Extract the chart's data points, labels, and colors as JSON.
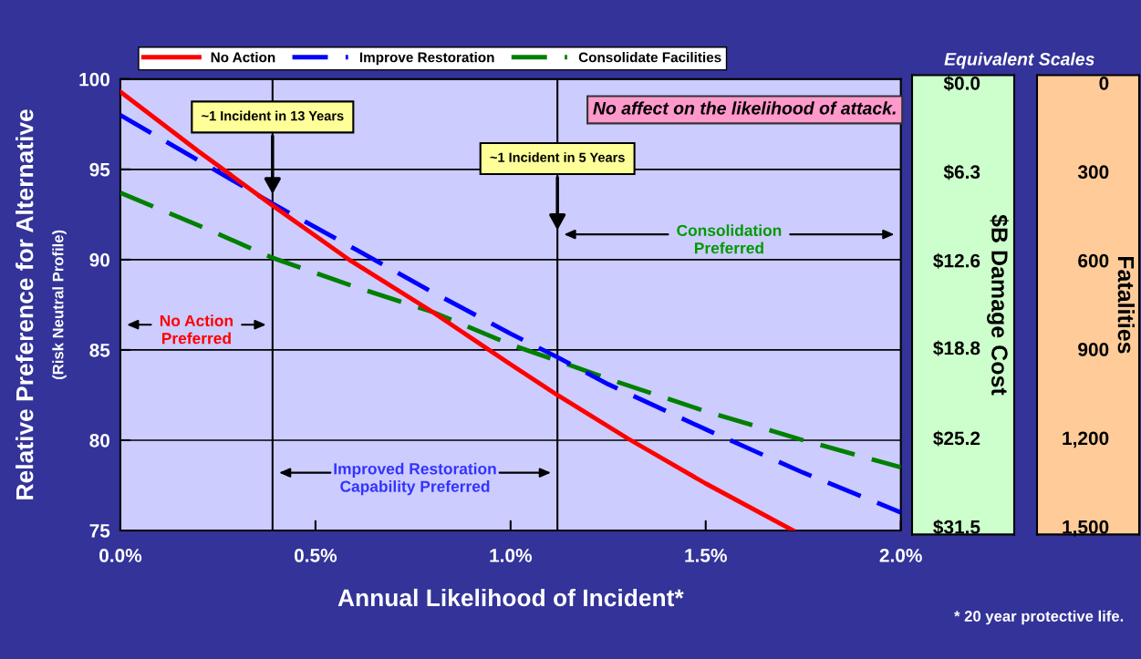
{
  "chart_data": {
    "type": "line",
    "xlabel": "Annual Likelihood of Incident*",
    "ylabel": "Relative Preference for Alternative",
    "y2label": "$B Damage Cost",
    "y3label": "Fatalities",
    "x": [
      0,
      0.2,
      0.39,
      0.6,
      0.8,
      1.0,
      1.12,
      1.25,
      1.5,
      1.75,
      2.0
    ],
    "series": [
      {
        "name": "No Action",
        "color": "#ff0000",
        "line_style": "solid",
        "x": [
          0,
          0.2,
          0.39,
          0.586,
          0.8,
          1.0,
          1.12,
          1.3,
          1.5,
          1.724
        ],
        "values": [
          99.3,
          96.0,
          93.0,
          90.0,
          87.1,
          84.2,
          82.5,
          80.1,
          77.6,
          75.0
        ]
      },
      {
        "name": "Improve Restoration",
        "color": "#0000ff",
        "line_style": "dashed",
        "values": [
          98.0,
          95.5,
          93.1,
          90.6,
          88.2,
          85.9,
          84.6,
          83.1,
          80.6,
          78.2,
          76.0
        ]
      },
      {
        "name": "Consolidate Facilities",
        "color": "#008000",
        "line_style": "dashed",
        "values": [
          93.7,
          91.9,
          90.1,
          88.5,
          87.1,
          85.3,
          84.4,
          83.4,
          81.6,
          80.0,
          78.5
        ]
      }
    ],
    "xlim": [
      0,
      2.0
    ],
    "xticks": [
      {
        "value": 0,
        "label": "0.0%"
      },
      {
        "value": 0.5,
        "label": "0.5%"
      },
      {
        "value": 1.0,
        "label": "1.0%"
      },
      {
        "value": 1.5,
        "label": "1.5%"
      },
      {
        "value": 2.0,
        "label": "2.0%"
      }
    ],
    "ylim": [
      75,
      100
    ],
    "yticks": [
      75,
      80,
      85,
      90,
      95,
      100
    ],
    "y2lim": [
      31.5,
      0
    ],
    "y2ticks": [
      {
        "value": 0,
        "label": "$0.0"
      },
      {
        "value": 6.3,
        "label": "$6.3"
      },
      {
        "value": 12.6,
        "label": "$12.6"
      },
      {
        "value": 18.8,
        "label": "$18.8"
      },
      {
        "value": 25.2,
        "label": "$25.2"
      },
      {
        "value": 31.5,
        "label": "$31.5"
      }
    ],
    "y3lim": [
      1500,
      0
    ],
    "y3ticks": [
      0,
      300,
      600,
      900,
      {
        "value": 1200,
        "label": "1,200"
      },
      {
        "value": 1500,
        "label": "1,500"
      }
    ],
    "ref_lines": [
      {
        "axis": "x",
        "value": 0.39,
        "label": "~1 Incident in 13 Years",
        "color": "#000000"
      },
      {
        "axis": "x",
        "value": 1.12,
        "label": "~1 Incident in 5 Years",
        "color": "#000000"
      }
    ],
    "annotations": [
      "No Action Preferred",
      "Improved Restoration Capability Preferred",
      "Consolidation Preferred",
      "No affect on the likelihood of attack.",
      "Equivalent Scales",
      "* 20 year protective life.",
      "(Risk Neutral Profile)"
    ],
    "grid": "y",
    "legend": "top"
  }
}
